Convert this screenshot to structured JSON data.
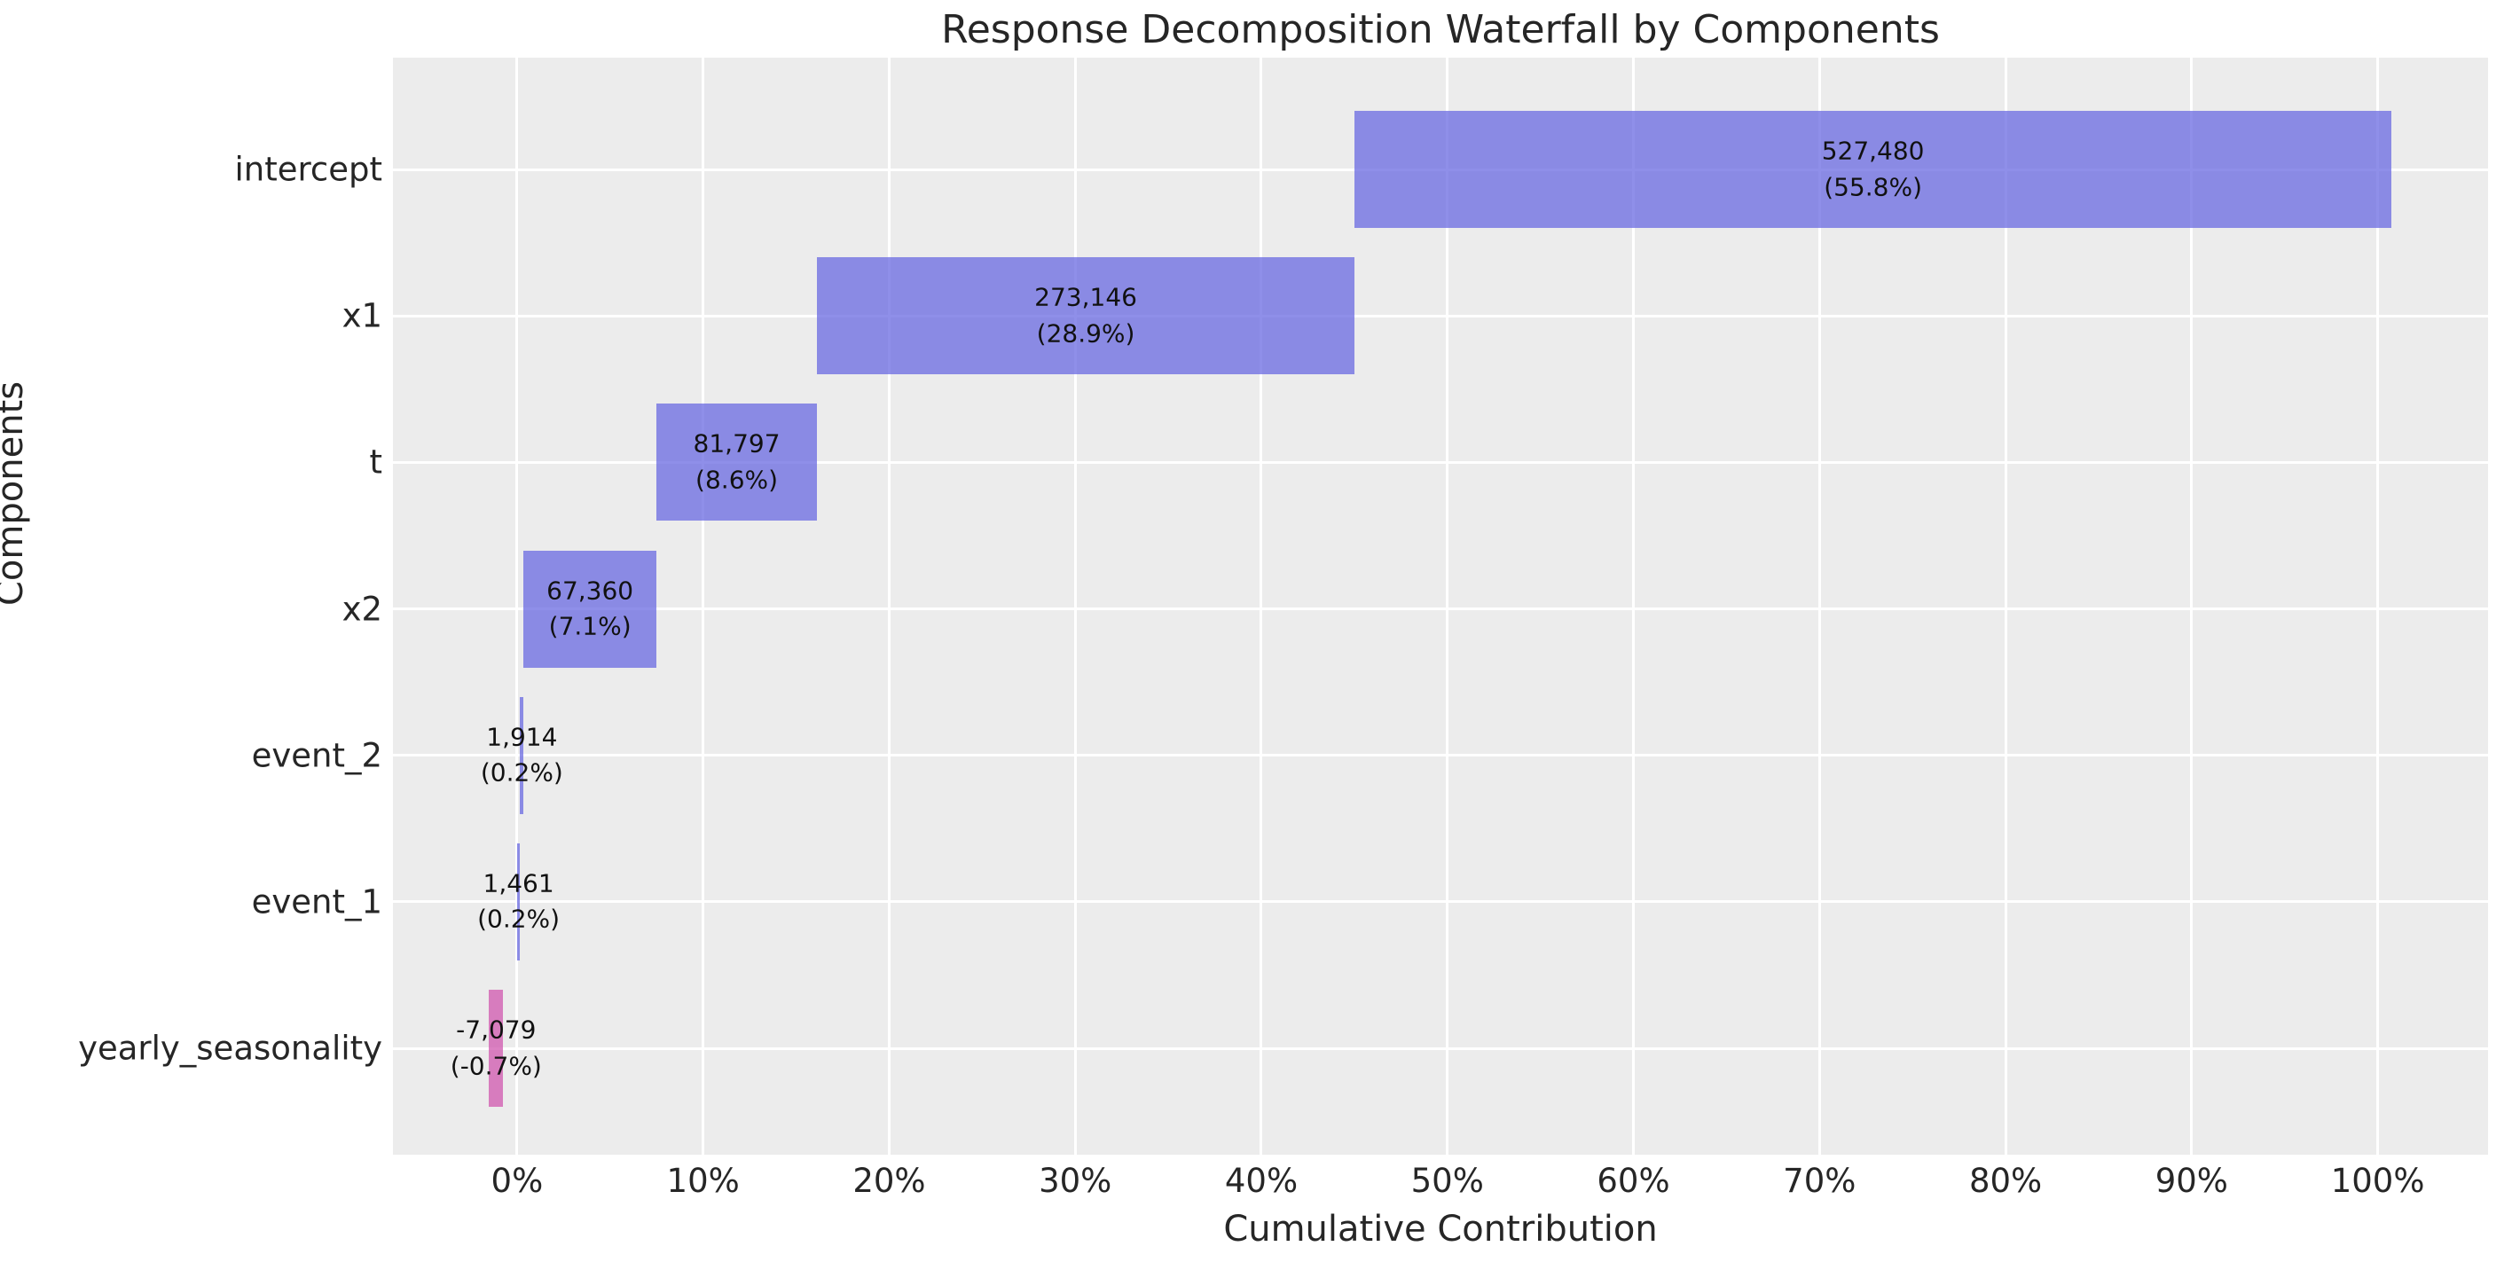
{
  "chart_data": {
    "type": "bar",
    "orientation": "horizontal-waterfall",
    "title": "Response Decomposition Waterfall by Components",
    "xlabel": "Cumulative Contribution",
    "ylabel": "Components",
    "xlim": [
      -6.67,
      105.93
    ],
    "grid": true,
    "legend": "none",
    "x_ticks": [
      {
        "value": 0,
        "label": "0%"
      },
      {
        "value": 10,
        "label": "10%"
      },
      {
        "value": 20,
        "label": "20%"
      },
      {
        "value": 30,
        "label": "30%"
      },
      {
        "value": 40,
        "label": "40%"
      },
      {
        "value": 50,
        "label": "50%"
      },
      {
        "value": 60,
        "label": "60%"
      },
      {
        "value": 70,
        "label": "70%"
      },
      {
        "value": 80,
        "label": "80%"
      },
      {
        "value": 90,
        "label": "90%"
      },
      {
        "value": 100,
        "label": "100%"
      }
    ],
    "categories": [
      "intercept",
      "x1",
      "t",
      "x2",
      "event_2",
      "event_1",
      "yearly_seasonality"
    ],
    "bars": [
      {
        "category": "intercept",
        "value": 527480,
        "value_label": "527,480",
        "pct_label": "(55.8%)",
        "start": 45.0,
        "end": 100.75,
        "color_key": "positive"
      },
      {
        "category": "x1",
        "value": 273146,
        "value_label": "273,146",
        "pct_label": "(28.9%)",
        "start": 16.13,
        "end": 45.0,
        "color_key": "positive"
      },
      {
        "category": "t",
        "value": 81797,
        "value_label": "81,797",
        "pct_label": "(8.6%)",
        "start": 7.48,
        "end": 16.13,
        "color_key": "positive"
      },
      {
        "category": "x2",
        "value": 67360,
        "value_label": "67,360",
        "pct_label": "(7.1%)",
        "start": 0.36,
        "end": 7.48,
        "color_key": "positive"
      },
      {
        "category": "event_2",
        "value": 1914,
        "value_label": "1,914",
        "pct_label": "(0.2%)",
        "start": 0.16,
        "end": 0.36,
        "color_key": "positive"
      },
      {
        "category": "event_1",
        "value": 1461,
        "value_label": "1,461",
        "pct_label": "(0.2%)",
        "start": 0.0,
        "end": 0.16,
        "color_key": "positive"
      },
      {
        "category": "yearly_seasonality",
        "value": -7079,
        "value_label": "-7,079",
        "pct_label": "(-0.7%)",
        "start": -1.5,
        "end": -0.75,
        "color_key": "negative"
      }
    ],
    "colors": {
      "positive": "rgba(106,106,226,0.75)",
      "negative": "rgba(208,87,175,0.75)",
      "plot_bg": "#ececec",
      "grid": "#ffffff",
      "text": "#262626",
      "bar_label": "#111111"
    }
  }
}
